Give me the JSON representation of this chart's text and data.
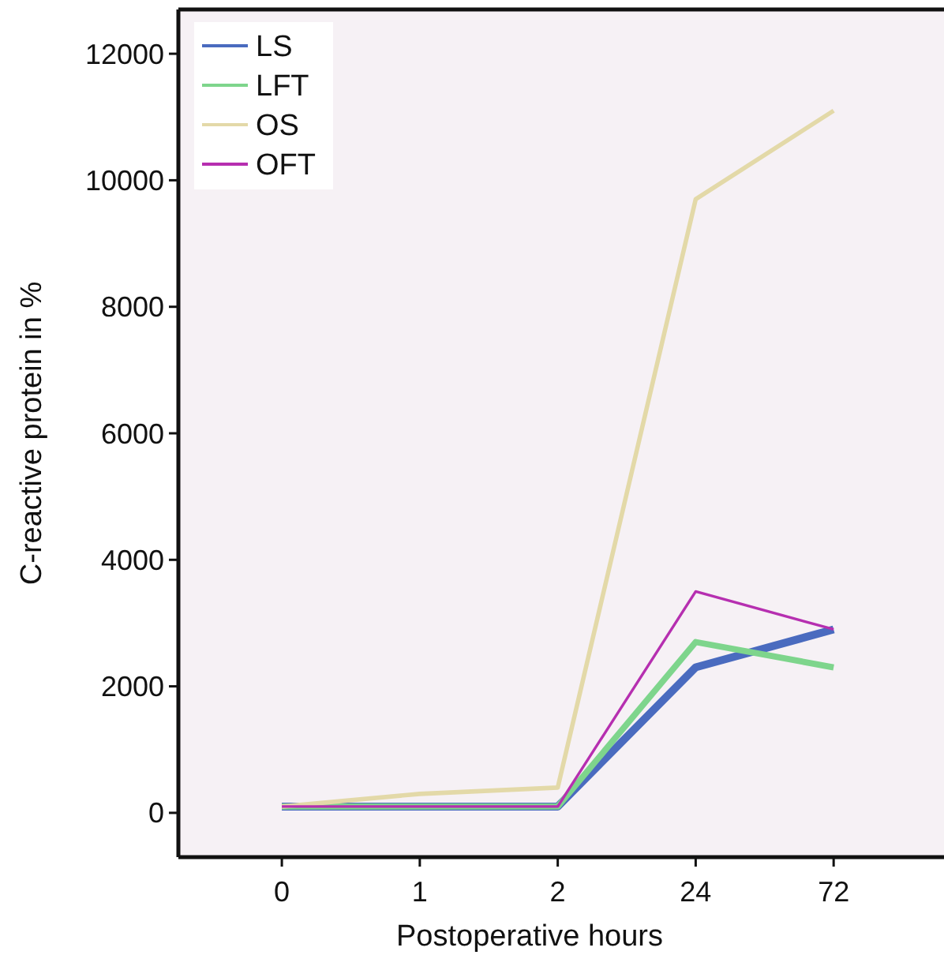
{
  "chart_data": {
    "type": "line",
    "xlabel": "Postoperative hours",
    "ylabel": "C-reactive protein in %",
    "categories": [
      "0",
      "1",
      "2",
      "24",
      "72"
    ],
    "series": [
      {
        "name": "LS",
        "color": "#4a6bbf",
        "values": [
          100,
          100,
          100,
          2300,
          2900
        ]
      },
      {
        "name": "LFT",
        "color": "#7ed58c",
        "values": [
          100,
          100,
          100,
          2700,
          2300
        ]
      },
      {
        "name": "OS",
        "color": "#e3d9a8",
        "values": [
          100,
          300,
          400,
          9700,
          11100
        ]
      },
      {
        "name": "OFT",
        "color": "#b62fb0",
        "values": [
          100,
          100,
          100,
          3500,
          2900
        ]
      }
    ],
    "ylim": [
      -700,
      12700
    ],
    "yticks": [
      0,
      2000,
      4000,
      6000,
      8000,
      10000,
      12000
    ],
    "grid": false,
    "legend": "top left",
    "marker": "none",
    "line_style": "solid"
  }
}
